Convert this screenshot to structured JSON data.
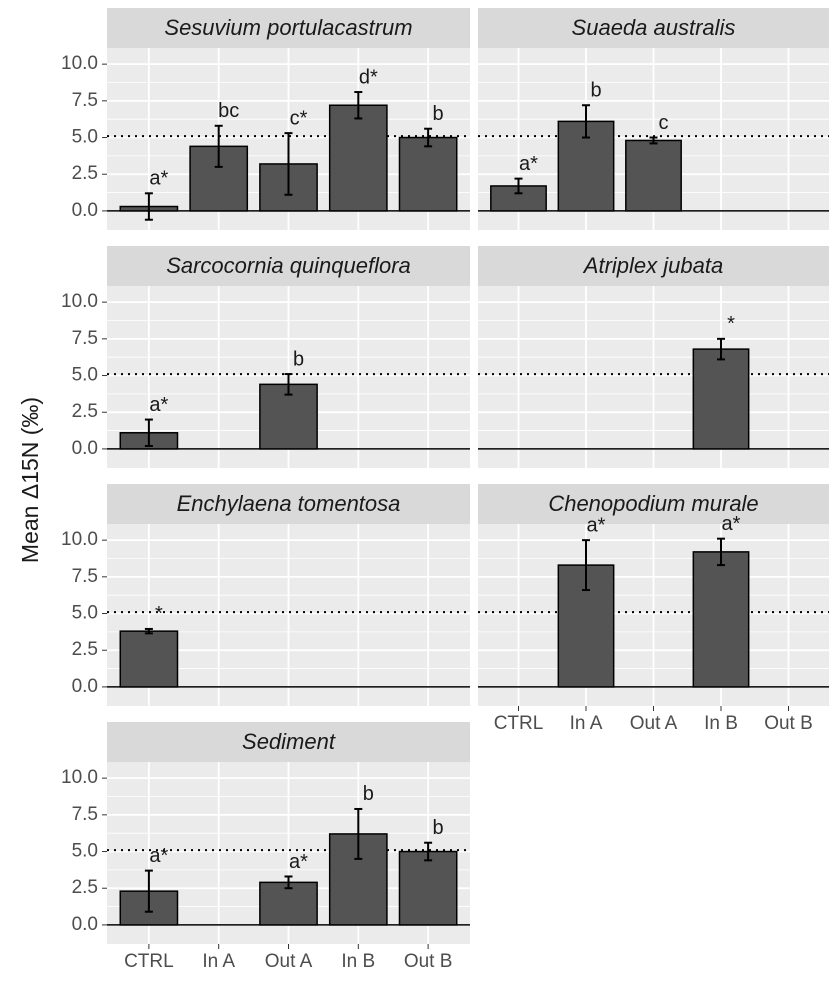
{
  "chart_data": {
    "type": "bar",
    "y_label": "Mean Δ15N (‰)",
    "categories": [
      "CTRL",
      "In A",
      "Out A",
      "In B",
      "Out B"
    ],
    "ylim": [
      -1.3,
      11.1
    ],
    "yticks": [
      {
        "value": 0,
        "label": "0.0"
      },
      2.5,
      {
        "value": 5,
        "label": "5.0"
      },
      7.5,
      {
        "value": 10,
        "label": "10.0"
      }
    ],
    "hline": 5.1,
    "color": "#545454",
    "grid": true,
    "facets": [
      {
        "title": "Sesuvium portulacastrum",
        "values": [
          0.3,
          4.4,
          3.2,
          7.2,
          5.0
        ],
        "errors": [
          0.9,
          1.4,
          2.1,
          0.9,
          0.6
        ],
        "annotations": [
          "a*",
          "bc",
          "c*",
          "d*",
          "b"
        ]
      },
      {
        "title": "Suaeda australis",
        "values": [
          1.7,
          6.1,
          4.8,
          null,
          null
        ],
        "errors": [
          0.5,
          1.1,
          0.2,
          null,
          null
        ],
        "annotations": [
          "a*",
          "b",
          "c",
          null,
          null
        ]
      },
      {
        "title": "Sarcocornia quinqueflora",
        "values": [
          1.1,
          null,
          4.4,
          null,
          null
        ],
        "errors": [
          0.9,
          null,
          0.7,
          null,
          null
        ],
        "annotations": [
          "a*",
          null,
          "b",
          null,
          null
        ]
      },
      {
        "title": "Atriplex jubata",
        "values": [
          null,
          null,
          null,
          6.8,
          null
        ],
        "errors": [
          null,
          null,
          null,
          0.7,
          null
        ],
        "annotations": [
          null,
          null,
          null,
          "*",
          null
        ]
      },
      {
        "title": "Enchylaena tomentosa",
        "values": [
          3.8,
          null,
          null,
          null,
          null
        ],
        "errors": [
          0.15,
          null,
          null,
          null,
          null
        ],
        "annotations": [
          "*",
          null,
          null,
          null,
          null
        ]
      },
      {
        "title": "Chenopodium murale",
        "values": [
          null,
          8.3,
          null,
          9.2,
          null
        ],
        "errors": [
          null,
          1.7,
          null,
          0.9,
          null
        ],
        "annotations": [
          null,
          "a*",
          null,
          "a*",
          null
        ]
      },
      {
        "title": "Sediment",
        "values": [
          2.3,
          null,
          2.9,
          6.2,
          5.0
        ],
        "errors": [
          1.4,
          null,
          0.4,
          1.7,
          0.6
        ],
        "annotations": [
          "a*",
          null,
          "a*",
          "b",
          "b"
        ]
      }
    ]
  }
}
